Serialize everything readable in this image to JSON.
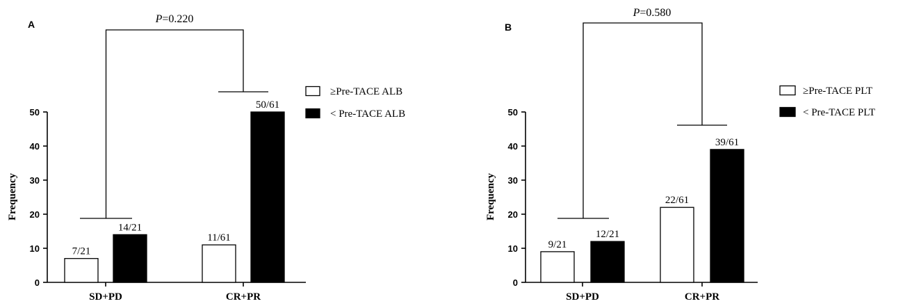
{
  "chart_data": [
    {
      "panel_label": "A",
      "type": "bar",
      "categories": [
        "SD+PD",
        "CR+PR"
      ],
      "ylabel": "Frequency",
      "ylim": [
        0,
        50
      ],
      "yticks": [
        "0",
        "10",
        "20",
        "30",
        "40",
        "50"
      ],
      "series": [
        {
          "name": "≥Pre-TACE ALB",
          "fill": "white",
          "values": [
            7,
            11
          ],
          "labels": [
            "7/21",
            "11/61"
          ]
        },
        {
          "name": "< Pre-TACE ALB",
          "fill": "black",
          "values": [
            14,
            50
          ],
          "labels": [
            "14/21",
            "50/61"
          ]
        }
      ],
      "comparison": {
        "p_symbol": "P",
        "p_value": "=0.220"
      },
      "legend_position": "right"
    },
    {
      "panel_label": "B",
      "type": "bar",
      "categories": [
        "SD+PD",
        "CR+PR"
      ],
      "ylabel": "Frequency",
      "ylim": [
        0,
        50
      ],
      "yticks": [
        "0",
        "10",
        "20",
        "30",
        "40",
        "50"
      ],
      "series": [
        {
          "name": "≥Pre-TACE PLT",
          "fill": "white",
          "values": [
            9,
            22
          ],
          "labels": [
            "9/21",
            "22/61"
          ]
        },
        {
          "name": "< Pre-TACE PLT",
          "fill": "black",
          "values": [
            12,
            39
          ],
          "labels": [
            "12/21",
            "39/61"
          ]
        }
      ],
      "comparison": {
        "p_symbol": "P",
        "p_value": "=0.580"
      },
      "legend_position": "right"
    }
  ]
}
